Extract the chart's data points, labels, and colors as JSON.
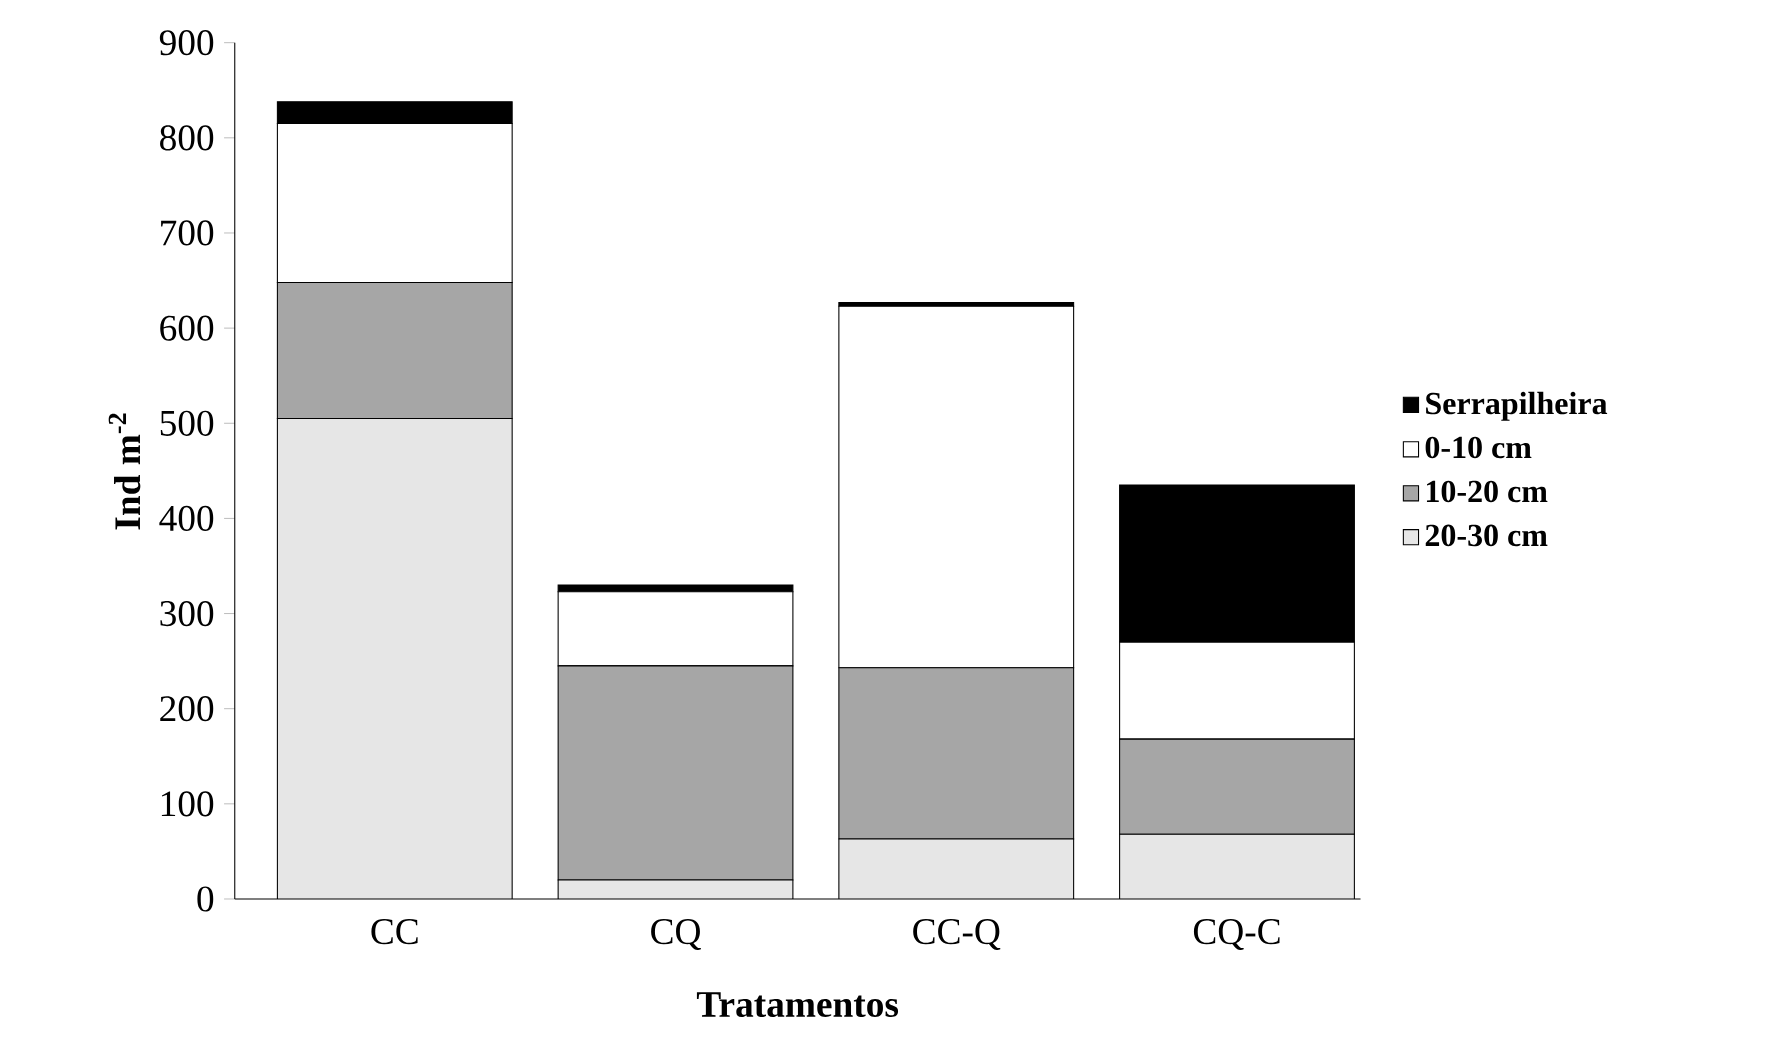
{
  "chart_data": {
    "type": "bar",
    "stacked": true,
    "xlabel": "Tratamentos",
    "ylabel": "Ind m$^{-2}$",
    "categories": [
      "CC",
      "CQ",
      "CC-Q",
      "CQ-C"
    ],
    "series": [
      {
        "name": "20-30 cm",
        "color": "#e6e6e6",
        "values": [
          505,
          20,
          63,
          68
        ]
      },
      {
        "name": "10-20 cm",
        "color": "#a6a6a6",
        "values": [
          143,
          225,
          180,
          100
        ]
      },
      {
        "name": "0-10 cm",
        "color": "#ffffff",
        "values": [
          167,
          78,
          380,
          102
        ]
      },
      {
        "name": "Serrapilheira",
        "color": "#000000",
        "values": [
          23,
          7,
          4,
          165
        ]
      }
    ],
    "ylim": [
      0,
      900
    ],
    "yticks": [
      0,
      100,
      200,
      300,
      400,
      500,
      600,
      700,
      800,
      900
    ],
    "grid": false,
    "legend": "right"
  }
}
